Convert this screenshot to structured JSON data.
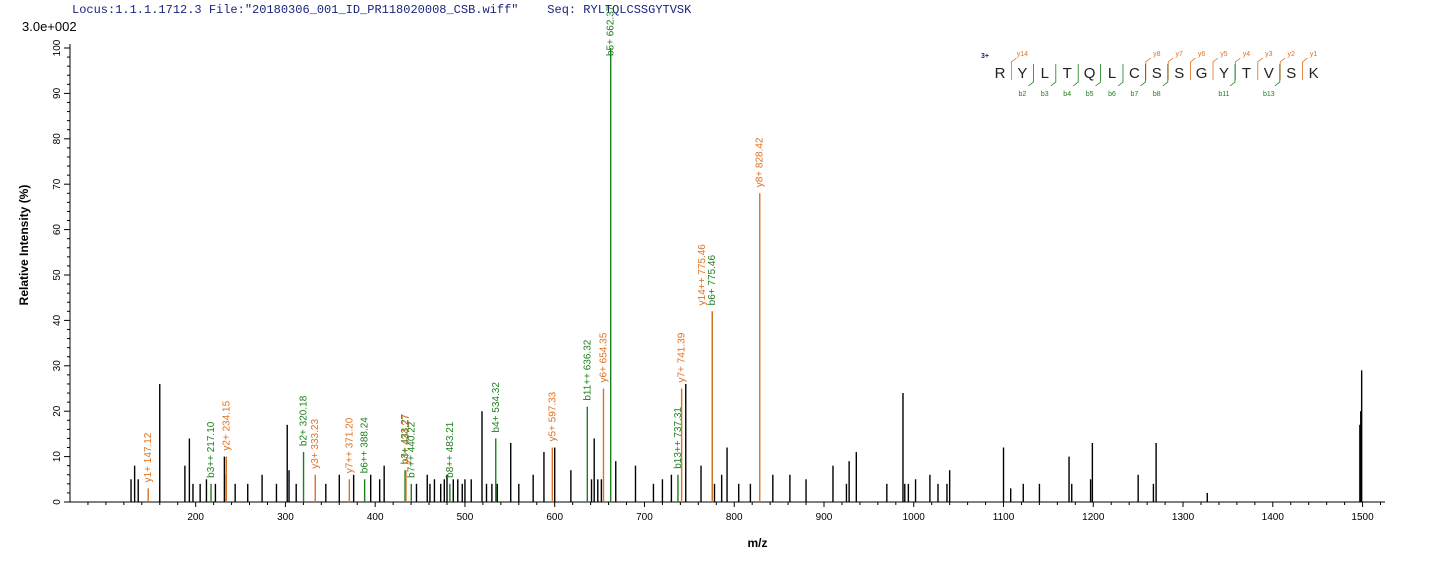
{
  "header": {
    "locus_label": "Locus:1.1.1.1712.3",
    "file_label": "File:\"20180306_001_ID_PR118020008_CSB.wiff\"",
    "seq_label": "Seq: RYLTQLCSSGYTVSK"
  },
  "scale_label": "3.0e+002",
  "colors": {
    "b_ion": "#1b7f1b",
    "y_ion": "#e07020",
    "unassigned": "#000000",
    "header": "#1a237e"
  },
  "chart_data": {
    "type": "bar",
    "xlabel": "m/z",
    "ylabel": "Relative  Intensity (%)",
    "xlim": [
      60,
      1525
    ],
    "ylim": [
      0,
      100
    ],
    "x_ticks": [
      200,
      300,
      400,
      500,
      600,
      700,
      800,
      900,
      1000,
      1100,
      1200,
      1300,
      1400,
      1500
    ],
    "y_ticks": [
      0,
      10,
      20,
      30,
      40,
      50,
      60,
      70,
      80,
      90,
      100
    ],
    "annotated_peaks": [
      {
        "x": 147.12,
        "y": 3,
        "ion": "y",
        "label": "y1+ 147.12"
      },
      {
        "x": 217.1,
        "y": 4,
        "ion": "b",
        "label": "b3++ 217.10"
      },
      {
        "x": 234.15,
        "y": 10,
        "ion": "y",
        "label": "y2+ 234.15"
      },
      {
        "x": 320.18,
        "y": 11,
        "ion": "b",
        "label": "b2+ 320.18"
      },
      {
        "x": 333.23,
        "y": 6,
        "ion": "y",
        "label": "y3+ 333.23"
      },
      {
        "x": 371.2,
        "y": 5,
        "ion": "y",
        "label": "y7++ 371.20"
      },
      {
        "x": 388.24,
        "y": 5,
        "ion": "b",
        "label": "b6++ 388.24"
      },
      {
        "x": 433.27,
        "y": 7,
        "ion": "b",
        "label": "b3+ 433.27"
      },
      {
        "x": 434.27,
        "y": 7,
        "ion": "y",
        "label": "y4+ 434.27"
      },
      {
        "x": 440.22,
        "y": 4,
        "ion": "b",
        "label": "b7++ 440.22"
      },
      {
        "x": 483.21,
        "y": 4,
        "ion": "b",
        "label": "b8++ 483.21"
      },
      {
        "x": 534.32,
        "y": 14,
        "ion": "b",
        "label": "b4+ 534.32"
      },
      {
        "x": 597.33,
        "y": 12,
        "ion": "y",
        "label": "y5+ 597.33"
      },
      {
        "x": 636.32,
        "y": 21,
        "ion": "b",
        "label": "b11++ 636.32"
      },
      {
        "x": 654.35,
        "y": 25,
        "ion": "y",
        "label": "y6+ 654.35"
      },
      {
        "x": 662.37,
        "y": 100,
        "ion": "b",
        "label": "b5+ 662.37"
      },
      {
        "x": 737.31,
        "y": 6,
        "ion": "b",
        "label": "b13++ 737.31"
      },
      {
        "x": 741.39,
        "y": 25,
        "ion": "y",
        "label": "y7+ 741.39"
      },
      {
        "x": 775.46,
        "y": 42,
        "ion": "b",
        "label": "b6+ 775.46"
      },
      {
        "x": 775.46,
        "y": 42,
        "ion": "y",
        "label": "y14++ 775.46"
      },
      {
        "x": 828.42,
        "y": 68,
        "ion": "y",
        "label": "y8+ 828.42"
      }
    ],
    "unassigned_peaks": [
      [
        128,
        5
      ],
      [
        132,
        8
      ],
      [
        136,
        5
      ],
      [
        160,
        26
      ],
      [
        188,
        8
      ],
      [
        193,
        14
      ],
      [
        197,
        4
      ],
      [
        205,
        4
      ],
      [
        212,
        5
      ],
      [
        222,
        4
      ],
      [
        232,
        10
      ],
      [
        234,
        6
      ],
      [
        244,
        4
      ],
      [
        258,
        4
      ],
      [
        274,
        6
      ],
      [
        290,
        4
      ],
      [
        302,
        17
      ],
      [
        304,
        7
      ],
      [
        312,
        4
      ],
      [
        345,
        4
      ],
      [
        360,
        6
      ],
      [
        376,
        6
      ],
      [
        395,
        6
      ],
      [
        405,
        5
      ],
      [
        410,
        8
      ],
      [
        446,
        4
      ],
      [
        458,
        6
      ],
      [
        461,
        4
      ],
      [
        466,
        5
      ],
      [
        473,
        4
      ],
      [
        477,
        5
      ],
      [
        480,
        6
      ],
      [
        487,
        5
      ],
      [
        492,
        5
      ],
      [
        497,
        4
      ],
      [
        500,
        5
      ],
      [
        507,
        5
      ],
      [
        519,
        20
      ],
      [
        524,
        4
      ],
      [
        530,
        4
      ],
      [
        536,
        4
      ],
      [
        551,
        13
      ],
      [
        560,
        4
      ],
      [
        576,
        6
      ],
      [
        588,
        11
      ],
      [
        600,
        12
      ],
      [
        618,
        7
      ],
      [
        641,
        5
      ],
      [
        644,
        14
      ],
      [
        648,
        5
      ],
      [
        652,
        5
      ],
      [
        668,
        9
      ],
      [
        690,
        8
      ],
      [
        710,
        4
      ],
      [
        720,
        5
      ],
      [
        730,
        6
      ],
      [
        746,
        26
      ],
      [
        763,
        8
      ],
      [
        778,
        4
      ],
      [
        786,
        6
      ],
      [
        792,
        12
      ],
      [
        805,
        4
      ],
      [
        818,
        4
      ],
      [
        843,
        6
      ],
      [
        862,
        6
      ],
      [
        880,
        5
      ],
      [
        910,
        8
      ],
      [
        925,
        4
      ],
      [
        928,
        9
      ],
      [
        936,
        11
      ],
      [
        970,
        4
      ],
      [
        988,
        24
      ],
      [
        990,
        4
      ],
      [
        994,
        4
      ],
      [
        1002,
        5
      ],
      [
        1018,
        6
      ],
      [
        1027,
        4
      ],
      [
        1037,
        4
      ],
      [
        1040,
        7
      ],
      [
        1100,
        12
      ],
      [
        1108,
        3
      ],
      [
        1122,
        4
      ],
      [
        1140,
        4
      ],
      [
        1173,
        10
      ],
      [
        1176,
        4
      ],
      [
        1197,
        5
      ],
      [
        1199,
        13
      ],
      [
        1250,
        6
      ],
      [
        1267,
        4
      ],
      [
        1270,
        13
      ],
      [
        1327,
        2
      ],
      [
        1497,
        17
      ],
      [
        1498,
        20
      ],
      [
        1499,
        29
      ]
    ]
  },
  "sequence_diagram": {
    "charge": "3+",
    "residues": [
      "R",
      "Y",
      "L",
      "T",
      "Q",
      "L",
      "C",
      "S",
      "S",
      "G",
      "Y",
      "T",
      "V",
      "S",
      "K"
    ],
    "y_ions_top": [
      "y14",
      "y8",
      "y7",
      "y6",
      "y5",
      "y4",
      "y3",
      "y2",
      "y1"
    ],
    "b_ions_bottom": [
      "b2",
      "b3",
      "b4",
      "b5",
      "b6",
      "b7",
      "b8",
      "b11",
      "b13"
    ]
  }
}
